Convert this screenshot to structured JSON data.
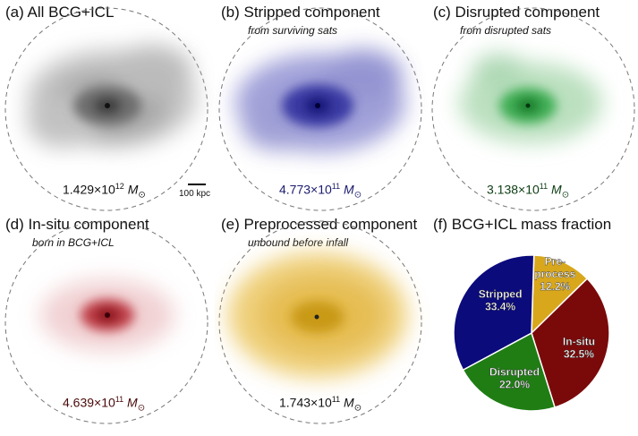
{
  "colors": {
    "all": "#707070",
    "stripped": "#2b2b9a",
    "disrupted": "#2a9a3c",
    "insitu": "#a0101a",
    "preprocessed": "#d8a71c",
    "dashed_circle": "#777777"
  },
  "panels": [
    {
      "id": "a",
      "title": "(a) All BCG+ICL",
      "subtitle": "",
      "mass_value": "1.429×10",
      "mass_exp": "12",
      "mass_unit": "M",
      "mass_color": "#111111"
    },
    {
      "id": "b",
      "title": "(b) Stripped component",
      "subtitle": "from surviving sats",
      "mass_value": "4.773×10",
      "mass_exp": "11",
      "mass_unit": "M",
      "mass_color": "#1b1b6e"
    },
    {
      "id": "c",
      "title": "(c) Disrupted component",
      "subtitle": "from disrupted sats",
      "mass_value": "3.138×10",
      "mass_exp": "11",
      "mass_unit": "M",
      "mass_color": "#0d3d12"
    },
    {
      "id": "d",
      "title": "(d) In-situ component",
      "subtitle": "born in BCG+ICL",
      "mass_value": "4.639×10",
      "mass_exp": "11",
      "mass_unit": "M",
      "mass_color": "#4a0a0a"
    },
    {
      "id": "e",
      "title": "(e) Preprocessed component",
      "subtitle": "unbound before infall",
      "mass_value": "1.743×10",
      "mass_exp": "11",
      "mass_unit": "M",
      "mass_color": "#111111"
    }
  ],
  "scale_bar": {
    "label": "100 kpc"
  },
  "sun_symbol": "⊙",
  "chart_data": {
    "type": "pie",
    "title": "(f) BCG+ICL mass fraction",
    "slices": [
      {
        "label": "Pre-",
        "label2": "process",
        "value": 12.2,
        "pct": "12.2%",
        "color": "#d8a71c"
      },
      {
        "label": "In-situ",
        "label2": "",
        "value": 32.5,
        "pct": "32.5%",
        "color": "#7a0a0a"
      },
      {
        "label": "Disrupted",
        "label2": "",
        "value": 22.0,
        "pct": "22.0%",
        "color": "#1f7d14"
      },
      {
        "label": "Stripped",
        "label2": "",
        "value": 33.4,
        "pct": "33.4%",
        "color": "#0b0b7c"
      }
    ]
  }
}
